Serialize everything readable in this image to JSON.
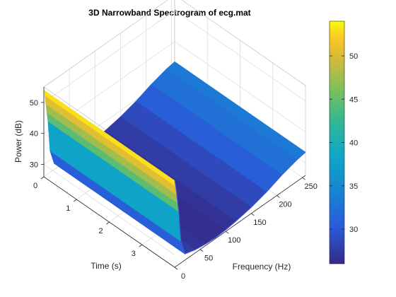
{
  "chart_data": {
    "type": "surface",
    "title": "3D Narrowband Spectrogram of ecg.mat",
    "xlabel": "Frequency (Hz)",
    "ylabel": "Time (s)",
    "zlabel": "Power (dB)",
    "x_ticks": [
      "0",
      "50",
      "100",
      "150",
      "200",
      "250"
    ],
    "y_ticks": [
      "0",
      "1",
      "2",
      "3"
    ],
    "z_ticks": [
      "30",
      "40",
      "50"
    ],
    "xlim": [
      0,
      256
    ],
    "ylim": [
      0,
      4
    ],
    "zlim": [
      26,
      55
    ],
    "clim": [
      26,
      54
    ],
    "colormap": "parula",
    "grid": true,
    "colorbar": {
      "location": "right",
      "ticks": [
        "30",
        "35",
        "40",
        "45",
        "50"
      ]
    },
    "surface_profile": {
      "frequency_hz": [
        0,
        2,
        4,
        6,
        8,
        12,
        20,
        40,
        60,
        80,
        100,
        120,
        150,
        180,
        210,
        240,
        256
      ],
      "power_db": [
        54,
        52,
        49,
        46,
        43,
        33,
        28,
        27,
        26.5,
        26.3,
        26.5,
        27,
        28,
        29.5,
        31.5,
        33,
        33.5
      ]
    },
    "time_range_s": [
      0,
      4
    ]
  }
}
